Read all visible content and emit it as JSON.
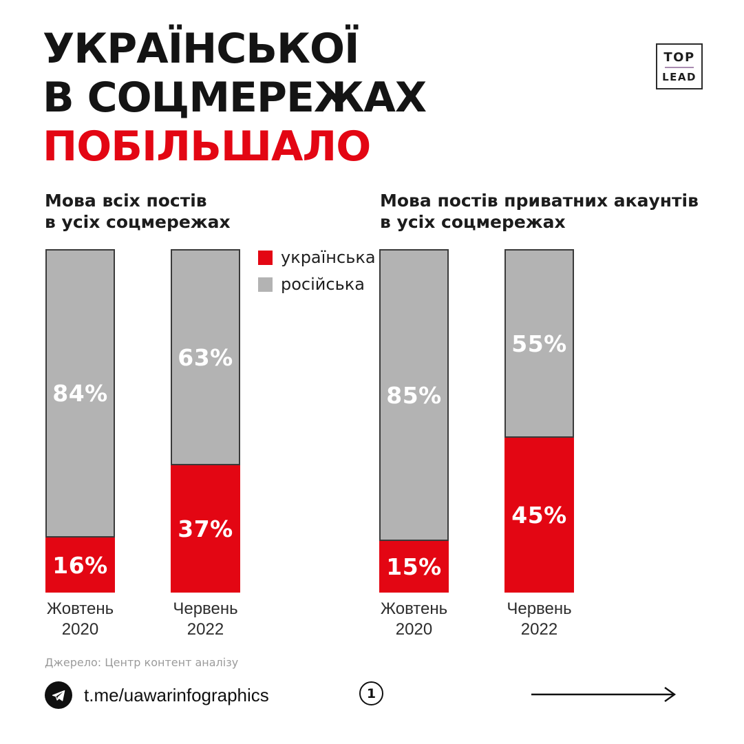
{
  "title": {
    "line1": "УКРАЇНСЬКОЇ",
    "line2": "В СОЦМЕРЕЖАХ",
    "line3": "ПОБІЛЬШАЛО"
  },
  "logo": {
    "top": "TOP",
    "bottom": "LEAD",
    "divider_color": "#a98bb0"
  },
  "colors": {
    "ukrainian_red": "#e30613",
    "russian_gray": "#b3b3b3",
    "bar_border": "#3a3a3a",
    "title_black": "#141414",
    "title_red": "#e30613"
  },
  "legend": [
    {
      "label": "українська",
      "color": "#e30613"
    },
    {
      "label": "російська",
      "color": "#b3b3b3"
    }
  ],
  "chart_data": [
    {
      "type": "bar",
      "stacked": true,
      "title_line1": "Мова всіх постів",
      "title_line2": "в усіх соцмережах",
      "categories": [
        "Жовтень\n2020",
        "Червень\n2022"
      ],
      "series": [
        {
          "name": "українська",
          "color": "#e30613",
          "values": [
            16,
            37
          ]
        },
        {
          "name": "російська",
          "color": "#b3b3b3",
          "values": [
            84,
            63
          ]
        }
      ],
      "unit": "%",
      "ylim": [
        0,
        100
      ],
      "legend_position": "right-of-bars",
      "grid": false
    },
    {
      "type": "bar",
      "stacked": true,
      "title_line1": "Мова постів приватних акаунтів",
      "title_line2": "в усіх соцмережах",
      "categories": [
        "Жовтень\n2020",
        "Червень\n2022"
      ],
      "series": [
        {
          "name": "українська",
          "color": "#e30613",
          "values": [
            15,
            45
          ]
        },
        {
          "name": "російська",
          "color": "#b3b3b3",
          "values": [
            85,
            55
          ]
        }
      ],
      "unit": "%",
      "ylim": [
        0,
        100
      ],
      "grid": false
    }
  ],
  "source": "Джерело: Центр контент аналізу",
  "footer": {
    "channel": "t.me/uawarinfographics",
    "page": "1"
  }
}
